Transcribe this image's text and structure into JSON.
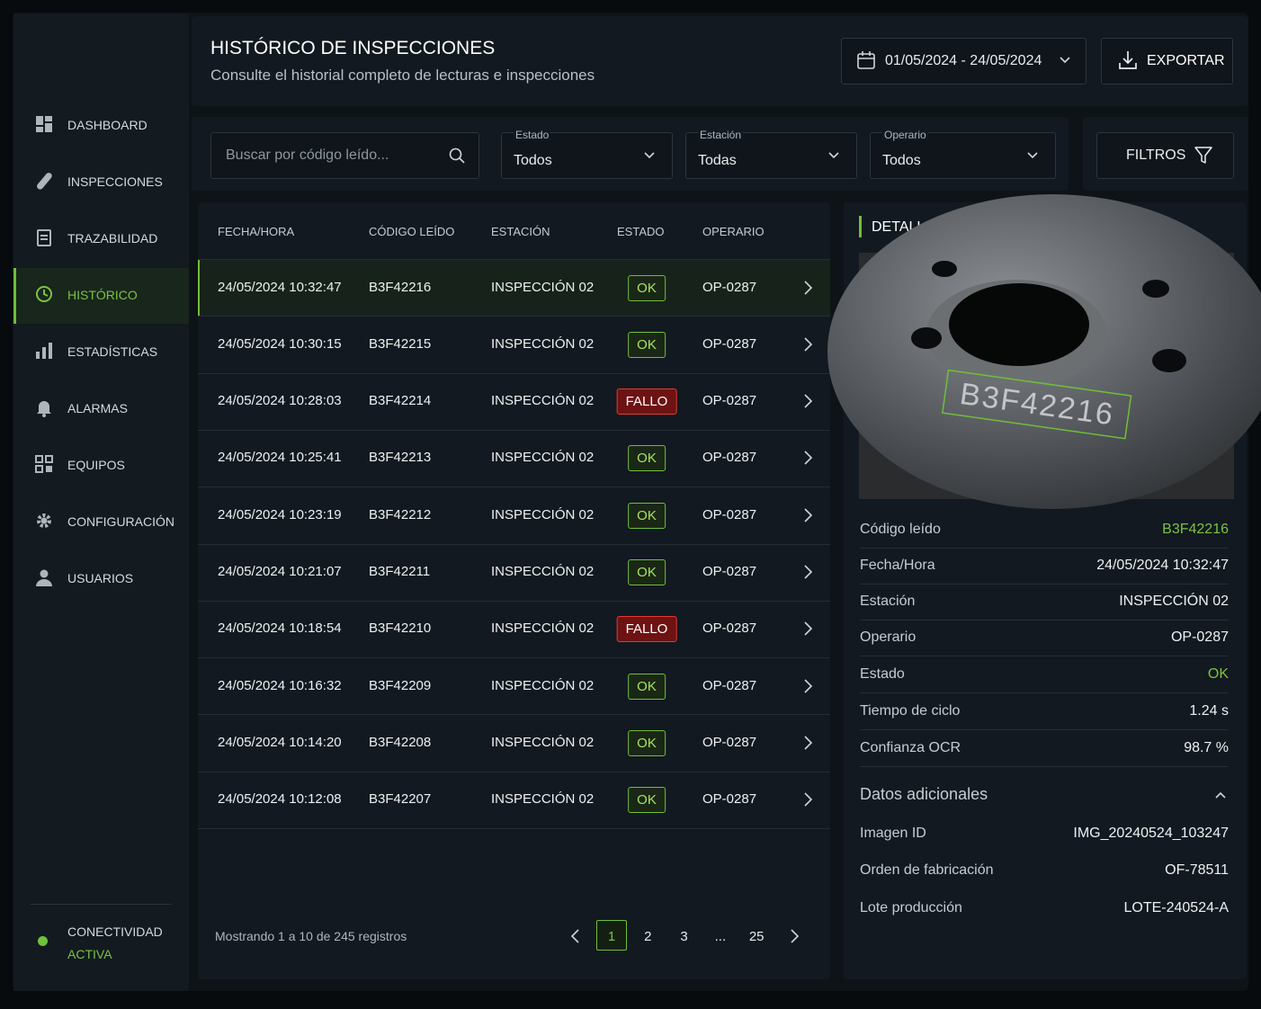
{
  "sidebar": {
    "items": [
      "DASHBOARD",
      "INSPECCIONES",
      "TRAZABILIDAD",
      "HISTÓRICO",
      "ESTADÍSTICAS",
      "ALARMAS",
      "EQUIPOS",
      "CONFIGURACIÓN",
      "USUARIOS"
    ],
    "active": 3,
    "status": [
      "CONECTIVIDAD",
      "ACTIVA"
    ]
  },
  "header": {
    "title": "HISTÓRICO DE INSPECCIONES",
    "subtitle": "Consulte el historial completo de lecturas e inspecciones",
    "date_range": "01/05/2024 - 24/05/2024",
    "export": "EXPORTAR"
  },
  "filters": {
    "search_placeholder": "Buscar por código leído...",
    "selects": [
      {
        "label": "Estado",
        "value": "Todos"
      },
      {
        "label": "Estación",
        "value": "Todas"
      },
      {
        "label": "Operario",
        "value": "Todos"
      }
    ],
    "button": "FILTROS"
  },
  "table": {
    "columns": [
      "FECHA/HORA",
      "CÓDIGO LEÍDO",
      "ESTACIÓN",
      "ESTADO",
      "OPERARIO"
    ],
    "rows": [
      [
        "24/05/2024 10:32:47",
        "B3F42216",
        "INSPECCIÓN 02",
        "OK",
        "OP-0287"
      ],
      [
        "24/05/2024 10:30:15",
        "B3F42215",
        "INSPECCIÓN 02",
        "OK",
        "OP-0287"
      ],
      [
        "24/05/2024 10:28:03",
        "B3F42214",
        "INSPECCIÓN 02",
        "FALLO",
        "OP-0287"
      ],
      [
        "24/05/2024 10:25:41",
        "B3F42213",
        "INSPECCIÓN 02",
        "OK",
        "OP-0287"
      ],
      [
        "24/05/2024 10:23:19",
        "B3F42212",
        "INSPECCIÓN 02",
        "OK",
        "OP-0287"
      ],
      [
        "24/05/2024 10:21:07",
        "B3F42211",
        "INSPECCIÓN 02",
        "OK",
        "OP-0287"
      ],
      [
        "24/05/2024 10:18:54",
        "B3F42210",
        "INSPECCIÓN 02",
        "FALLO",
        "OP-0287"
      ],
      [
        "24/05/2024 10:16:32",
        "B3F42209",
        "INSPECCIÓN 02",
        "OK",
        "OP-0287"
      ],
      [
        "24/05/2024 10:14:20",
        "B3F42208",
        "INSPECCIÓN 02",
        "OK",
        "OP-0287"
      ],
      [
        "24/05/2024 10:12:08",
        "B3F42207",
        "INSPECCIÓN 02",
        "OK",
        "OP-0287"
      ]
    ],
    "selected_row": 0,
    "status_styles": {
      "OK": {
        "color": "#a6e35f",
        "border": "#6fbf3a",
        "background": "#1a2716"
      },
      "FALLO": {
        "color": "#ffffff",
        "border": "#e53935",
        "background": "#6e1212"
      }
    }
  },
  "pagination": {
    "summary": "Mostrando 1 a 10 de 245 registros",
    "pages": [
      "1",
      "2",
      "3",
      "...",
      "25"
    ],
    "current": 0
  },
  "detail": {
    "title": "DETALLE DE LA INSPECCIÓN",
    "image_label": "B3F42216",
    "fields": [
      {
        "label": "Código leído",
        "value": "B3F42216",
        "color": "#7cc242"
      },
      {
        "label": "Fecha/Hora",
        "value": "24/05/2024 10:32:47"
      },
      {
        "label": "Estación",
        "value": "INSPECCIÓN 02"
      },
      {
        "label": "Operario",
        "value": "OP-0287"
      },
      {
        "label": "Estado",
        "value": "OK",
        "color": "#7cc242"
      },
      {
        "label": "Tiempo de ciclo",
        "value": "1.24 s"
      },
      {
        "label": "Confianza OCR",
        "value": "98.7 %"
      }
    ],
    "extra_title": "Datos adicionales",
    "extra_fields": [
      {
        "label": "Imagen ID",
        "value": "IMG_20240524_103247"
      },
      {
        "label": "Orden de fabricación",
        "value": "OF-78511"
      },
      {
        "label": "Lote producción",
        "value": "LOTE-240524-A"
      }
    ]
  }
}
